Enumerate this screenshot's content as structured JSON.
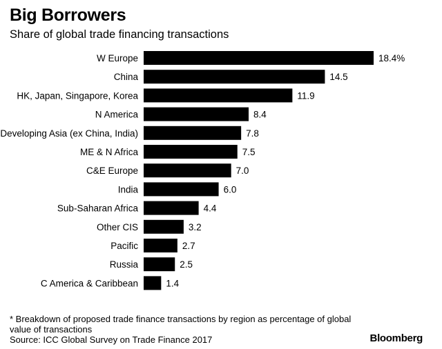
{
  "chart_data": {
    "type": "bar",
    "orientation": "horizontal",
    "title": "Big Borrowers",
    "subtitle": "Share of global trade financing transactions",
    "categories": [
      "W Europe",
      "China",
      "HK, Japan, Singapore, Korea",
      "N America",
      "Developing Asia (ex China, India)",
      "ME & N Africa",
      "C&E Europe",
      "India",
      "Sub-Saharan Africa",
      "Other CIS",
      "Pacific",
      "Russia",
      "C America & Caribbean"
    ],
    "values": [
      18.4,
      14.5,
      11.9,
      8.4,
      7.8,
      7.5,
      7.0,
      6.0,
      4.4,
      3.2,
      2.7,
      2.5,
      1.4
    ],
    "value_labels": [
      "18.4%",
      "14.5",
      "11.9",
      "8.4",
      "7.8",
      "7.5",
      "7.0",
      "6.0",
      "4.4",
      "3.2",
      "2.7",
      "2.5",
      "1.4"
    ],
    "xlim": [
      0,
      18.4
    ],
    "xlabel": "",
    "ylabel": "",
    "bar_color": "#000000"
  },
  "footnote": "* Breakdown of proposed trade finance transactions by region as percentage of global value of transactions",
  "source": "Source: ICC Global Survey on Trade Finance 2017",
  "brand": "Bloomberg"
}
